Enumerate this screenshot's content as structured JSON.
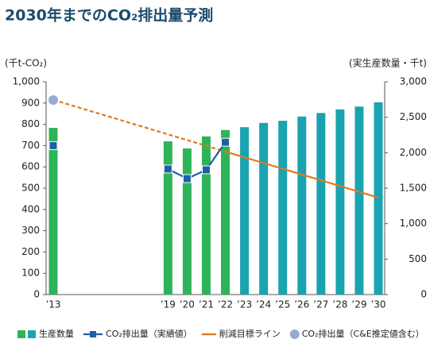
{
  "chart_data": {
    "type": "combo",
    "title": "2030年までのCO₂排出量予測",
    "y_label": "(千t-CO₂)",
    "y2_label": "(実生産数量・千t)",
    "categories": [
      "’13",
      null,
      null,
      null,
      null,
      null,
      "’19",
      "’20",
      "’21",
      "’22",
      "’23",
      "’24",
      "’25",
      "’26",
      "’27",
      "’28",
      "’29",
      "’30"
    ],
    "ylim": [
      0,
      1000
    ],
    "yticks": [
      0,
      100,
      200,
      300,
      400,
      500,
      600,
      700,
      800,
      900,
      {
        "value": 1000,
        "label": "1,000"
      }
    ],
    "y2lim": [
      0,
      3000
    ],
    "y2ticks": [
      0,
      500,
      {
        "value": 1000,
        "label": "1,000"
      },
      {
        "value": 1500,
        "label": "1,500"
      },
      {
        "value": 2000,
        "label": "2,000"
      },
      {
        "value": 2500,
        "label": "2,500"
      },
      {
        "value": 3000,
        "label": "3,000"
      }
    ],
    "series": [
      {
        "name": "生産数量",
        "kind": "bar",
        "axis": "y2",
        "colors": [
          "#2db45a",
          null,
          null,
          null,
          null,
          null,
          "#2db45a",
          "#2db45a",
          "#2db45a",
          "#2db45a",
          "#1aa3b0",
          "#1aa3b0",
          "#1aa3b0",
          "#1aa3b0",
          "#1aa3b0",
          "#1aa3b0",
          "#1aa3b0",
          "#1aa3b0"
        ],
        "values": [
          2350,
          null,
          null,
          null,
          null,
          null,
          2160,
          2060,
          2230,
          2320,
          2360,
          2420,
          2450,
          2510,
          2560,
          2610,
          2650,
          2710
        ]
      },
      {
        "name": "CO₂排出量（実績値）",
        "kind": "line",
        "color": "#1f5fa8",
        "values": [
          700,
          null,
          null,
          null,
          null,
          null,
          590,
          545,
          586,
          716,
          null,
          null,
          null,
          null,
          null,
          null,
          null,
          null
        ]
      },
      {
        "name": "削減目標ライン",
        "kind": "target",
        "color": "#e07b20",
        "values": [
          915,
          888,
          861,
          834,
          807,
          780,
          753,
          726,
          699,
          672,
          645,
          618,
          591,
          564,
          537,
          510,
          483,
          455
        ]
      },
      {
        "name": "CO₂排出量（C&E推定値含む）",
        "kind": "scatter",
        "color": "#9aa8d8",
        "values": [
          914,
          null,
          null,
          null,
          null,
          null,
          null,
          null,
          null,
          null,
          null,
          null,
          null,
          null,
          null,
          null,
          null,
          null
        ]
      }
    ]
  }
}
